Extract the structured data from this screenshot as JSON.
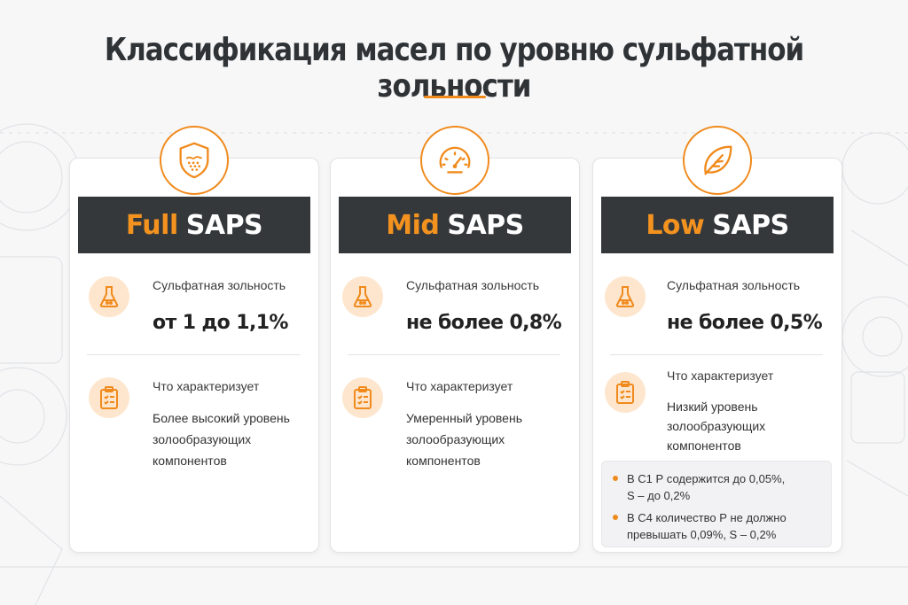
{
  "title": "Классификация масел по уровню сульфатной зольности",
  "colors": {
    "accent": "#f08a1c",
    "banner": "#34383b",
    "icon_bg": "#fde6cd"
  },
  "cards": [
    {
      "icon": "shield-icon",
      "accent": "Full",
      "rest": "SAPS",
      "ash_label": "Сульфатная зольность",
      "ash_value": "от 1 до 1,1%",
      "char_label": "Что характеризует",
      "char_lines": [
        "Более высокий уровень",
        "золообразующих",
        "компонентов"
      ]
    },
    {
      "icon": "gauge-icon",
      "accent": "Mid",
      "rest": "SAPS",
      "ash_label": "Сульфатная зольность",
      "ash_value": "не более 0,8%",
      "char_label": "Что характеризует",
      "char_lines": [
        "Умеренный уровень",
        "золообразующих",
        "компонентов"
      ]
    },
    {
      "icon": "leaf-icon",
      "accent": "Low",
      "rest": "SAPS",
      "ash_label": "Сульфатная зольность",
      "ash_value": "не более 0,5%",
      "char_label": "Что характеризует",
      "char_lines": [
        "Низкий уровень",
        "золообразующих",
        "компонентов"
      ],
      "notes": [
        {
          "line1": "В С1 Р содержится до 0,05%,",
          "line2": "S – до 0,2%"
        },
        {
          "line1": "В С4 количество Р не должно",
          "line2": "превышать 0,09%, S – 0,2%"
        }
      ]
    }
  ],
  "row_icons": {
    "ash": "flask-icon",
    "char": "clipboard-icon"
  }
}
